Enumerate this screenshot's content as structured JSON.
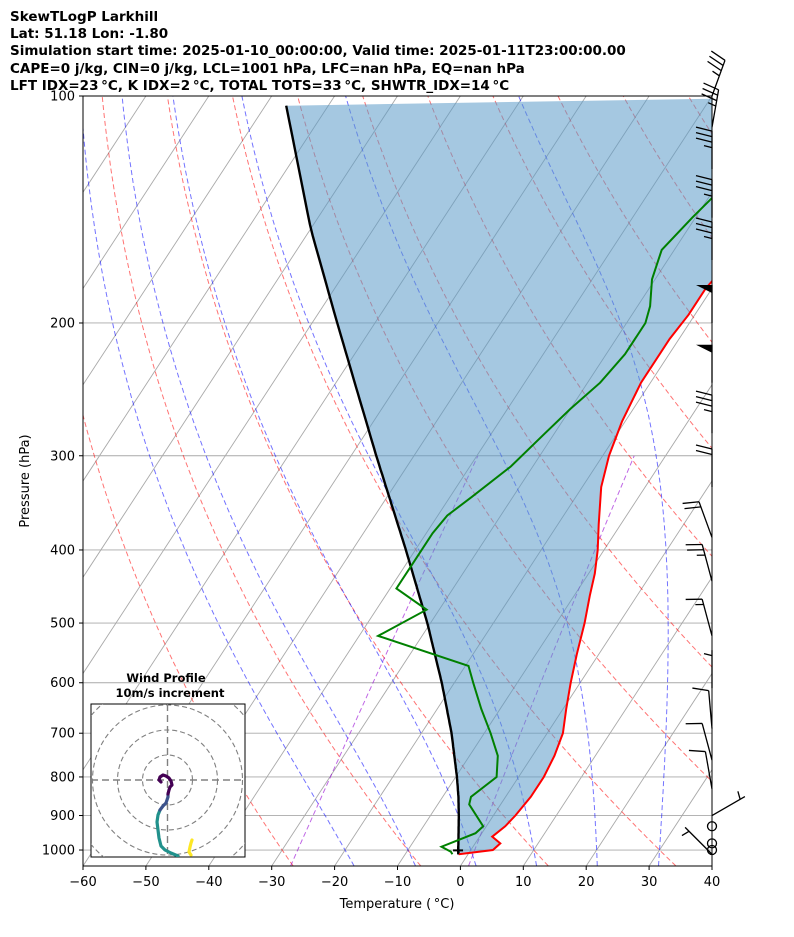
{
  "header": {
    "line1": "SkewTLogP Larkhill",
    "line2": "Lat: 51.18   Lon: -1.80",
    "line3": "Simulation start time: 2025-01-10_00:00:00, Valid time: 2025-01-11T23:00:00.00",
    "line4": "CAPE=0 j/kg, CIN=0 j/kg, LCL=1001 hPa, LFC=nan hPa, EQ=nan hPa",
    "line5": "LFT IDX=23 °C, K IDX=2 °C, TOTAL TOTS=33 °C, SHWTR_IDX=14 °C"
  },
  "chart_data": {
    "type": "line",
    "xlabel": "Temperature ( °C)",
    "ylabel": "Pressure (hPa)",
    "xlim": [
      -60,
      40
    ],
    "ylim": [
      1050,
      100
    ],
    "y_scale": "log",
    "x_ticks": [
      "−60",
      "−50",
      "−40",
      "−30",
      "−20",
      "−10",
      "0",
      "10",
      "20",
      "30",
      "40"
    ],
    "y_ticks": [
      "100",
      "200",
      "300",
      "400",
      "500",
      "600",
      "700",
      "800",
      "900",
      "1000"
    ],
    "grid": true,
    "colors": {
      "temperature": "#ff0000",
      "dewpoint": "#008000",
      "parcel": "#000000",
      "shading": "#5b9bc8",
      "isotherm": "#a9a9a9",
      "dry_adiabat": "#ff0000",
      "moist_adiabat": "#0000ff",
      "mixing_ratio": "#9400d3"
    },
    "temperature": [
      [
        1013,
        -1.5
      ],
      [
        1000,
        3.5
      ],
      [
        980,
        4.0
      ],
      [
        960,
        2.0
      ],
      [
        930,
        3.0
      ],
      [
        900,
        3.5
      ],
      [
        850,
        4.0
      ],
      [
        800,
        4.0
      ],
      [
        750,
        3.5
      ],
      [
        700,
        2.5
      ],
      [
        650,
        0.5
      ],
      [
        600,
        -1.5
      ],
      [
        550,
        -3.5
      ],
      [
        500,
        -5.5
      ],
      [
        460,
        -7.5
      ],
      [
        430,
        -9.0
      ],
      [
        400,
        -11.0
      ],
      [
        370,
        -13.5
      ],
      [
        330,
        -17.0
      ],
      [
        300,
        -19.0
      ],
      [
        270,
        -20.5
      ],
      [
        240,
        -21.5
      ],
      [
        210,
        -21.5
      ],
      [
        195,
        -21.0
      ],
      [
        180,
        -21.0
      ],
      [
        165,
        -20.0
      ],
      [
        155,
        -20.0
      ],
      [
        145,
        -19.0
      ],
      [
        135,
        -19.0
      ],
      [
        125,
        -17.5
      ],
      [
        115,
        -17.0
      ],
      [
        108,
        -15.0
      ],
      [
        100,
        -14.0
      ]
    ],
    "dewpoint": [
      [
        1013,
        -2.5
      ],
      [
        1005,
        -3.0
      ],
      [
        990,
        -5.0
      ],
      [
        975,
        -3.5
      ],
      [
        950,
        -1.0
      ],
      [
        930,
        -0.5
      ],
      [
        870,
        -5.0
      ],
      [
        850,
        -5.5
      ],
      [
        800,
        -3.5
      ],
      [
        750,
        -5.5
      ],
      [
        700,
        -9.0
      ],
      [
        650,
        -13.0
      ],
      [
        600,
        -17.0
      ],
      [
        570,
        -19.5
      ],
      [
        520,
        -37.0
      ],
      [
        480,
        -32.0
      ],
      [
        450,
        -39.0
      ],
      [
        420,
        -39.0
      ],
      [
        380,
        -39.0
      ],
      [
        360,
        -38.5
      ],
      [
        340,
        -36.5
      ],
      [
        310,
        -33.5
      ],
      [
        280,
        -31.5
      ],
      [
        260,
        -30.0
      ],
      [
        240,
        -28.0
      ],
      [
        220,
        -27.0
      ],
      [
        200,
        -27.0
      ],
      [
        190,
        -28.0
      ],
      [
        175,
        -30.5
      ],
      [
        160,
        -32.0
      ],
      [
        145,
        -30.5
      ],
      [
        130,
        -28.5
      ],
      [
        115,
        -26.0
      ],
      [
        100,
        -23.0
      ]
    ],
    "parcel": [
      [
        1013,
        -1.5
      ],
      [
        1000,
        -2.0
      ],
      [
        950,
        -3.7
      ],
      [
        900,
        -5.5
      ],
      [
        850,
        -7.5
      ],
      [
        800,
        -9.8
      ],
      [
        700,
        -15.2
      ],
      [
        600,
        -22.0
      ],
      [
        500,
        -30.5
      ],
      [
        400,
        -41.5
      ],
      [
        300,
        -56.0
      ],
      [
        250,
        -65.0
      ],
      [
        200,
        -76.0
      ],
      [
        150,
        -90.0
      ],
      [
        100,
        -108.0
      ]
    ],
    "wind_barbs": [
      {
        "p": 1013,
        "speed_kt": 5,
        "dir_deg": 315
      },
      {
        "p": 1000,
        "speed_kt": 0,
        "dir_deg": 0
      },
      {
        "p": 980,
        "speed_kt": 0,
        "dir_deg": 0
      },
      {
        "p": 930,
        "speed_kt": 0,
        "dir_deg": 0
      },
      {
        "p": 900,
        "speed_kt": 5,
        "dir_deg": 60
      },
      {
        "p": 830,
        "speed_kt": 10,
        "dir_deg": 350
      },
      {
        "p": 760,
        "speed_kt": 10,
        "dir_deg": 345
      },
      {
        "p": 690,
        "speed_kt": 10,
        "dir_deg": 355
      },
      {
        "p": 610,
        "speed_kt": 5,
        "dir_deg": 0
      },
      {
        "p": 520,
        "speed_kt": 15,
        "dir_deg": 345
      },
      {
        "p": 440,
        "speed_kt": 25,
        "dir_deg": 345
      },
      {
        "p": 385,
        "speed_kt": 20,
        "dir_deg": 340
      },
      {
        "p": 330,
        "speed_kt": 20,
        "dir_deg": 0
      },
      {
        "p": 280,
        "speed_kt": 35,
        "dir_deg": 0
      },
      {
        "p": 240,
        "speed_kt": 50,
        "dir_deg": 0
      },
      {
        "p": 200,
        "speed_kt": 50,
        "dir_deg": 0
      },
      {
        "p": 165,
        "speed_kt": 35,
        "dir_deg": 0
      },
      {
        "p": 145,
        "speed_kt": 35,
        "dir_deg": 0
      },
      {
        "p": 125,
        "speed_kt": 35,
        "dir_deg": 0
      },
      {
        "p": 110,
        "speed_kt": 35,
        "dir_deg": 10
      },
      {
        "p": 100,
        "speed_kt": 35,
        "dir_deg": 20
      }
    ],
    "hodograph": {
      "title": "Wind Profile",
      "subtitle": "10m/s increment",
      "colors": [
        "#fde725",
        "#21918c",
        "#3b528b",
        "#440154"
      ]
    }
  }
}
